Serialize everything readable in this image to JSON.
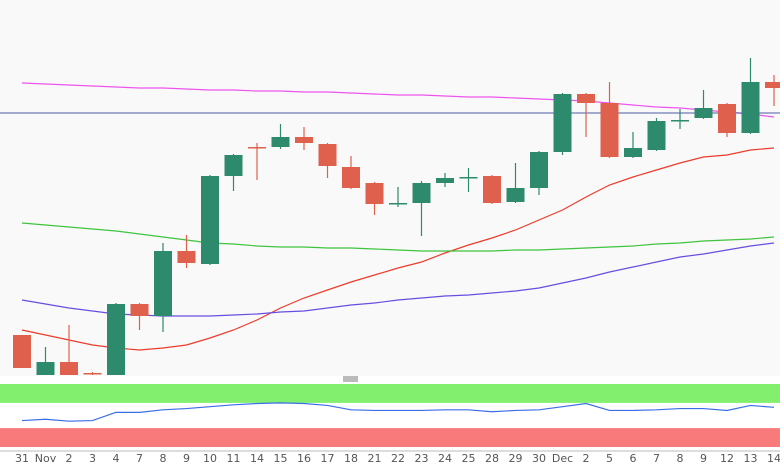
{
  "chart_data": {
    "type": "candlestick",
    "categories": [
      "31",
      "Nov",
      "2",
      "3",
      "4",
      "7",
      "8",
      "9",
      "10",
      "11",
      "14",
      "15",
      "16",
      "17",
      "18",
      "21",
      "22",
      "23",
      "24",
      "25",
      "28",
      "29",
      "30",
      "Dec",
      "2",
      "5",
      "6",
      "7",
      "8",
      "9",
      "12",
      "13",
      "14"
    ],
    "open": [
      40,
      0,
      13,
      2,
      0,
      71,
      59,
      124,
      111,
      199,
      228,
      228,
      238,
      231,
      208,
      192,
      171,
      172,
      192,
      197,
      199,
      173,
      187,
      223,
      281,
      272,
      218,
      225,
      254,
      257,
      271,
      242,
      293
    ],
    "high": [
      40,
      28,
      50,
      3,
      72,
      72,
      132,
      140,
      200,
      221,
      232,
      251,
      248,
      232,
      219,
      193,
      188,
      194,
      202,
      207,
      200,
      212,
      224,
      282,
      282,
      293,
      243,
      257,
      266,
      285,
      272,
      317,
      300
    ],
    "low": [
      7,
      0,
      0,
      0,
      0,
      45,
      43,
      107,
      110,
      184,
      195,
      226,
      225,
      197,
      186,
      160,
      168,
      139,
      188,
      183,
      171,
      172,
      180,
      220,
      238,
      217,
      217,
      224,
      246,
      256,
      238,
      241,
      269
    ],
    "close": [
      7,
      13,
      0,
      1,
      71,
      59,
      124,
      112,
      199,
      220,
      227,
      238,
      232,
      209,
      187,
      171,
      172,
      192,
      197,
      198,
      172,
      187,
      223,
      281,
      272,
      218,
      227,
      254,
      255,
      267,
      242,
      293,
      287
    ],
    "up_color": "#2d8a6c",
    "down_color": "#e0604e",
    "ylim": [
      0,
      375
    ],
    "hline": 262,
    "hline_color": "#4a5aa8",
    "series": [
      {
        "color": "#ee55ee",
        "values": [
          292,
          291,
          290,
          289,
          288,
          287,
          287,
          286,
          285,
          285,
          284,
          284,
          283,
          283,
          282,
          281,
          280,
          280,
          279,
          278,
          278,
          277,
          276,
          275,
          274,
          272,
          270,
          268,
          267,
          265,
          263,
          261,
          258
        ]
      },
      {
        "color": "#ee3b2b",
        "values": [
          45,
          40,
          35,
          30,
          27,
          25,
          27,
          30,
          37,
          45,
          55,
          67,
          77,
          85,
          93,
          100,
          107,
          113,
          122,
          130,
          137,
          145,
          155,
          165,
          178,
          190,
          198,
          205,
          212,
          218,
          220,
          225,
          227
        ]
      },
      {
        "color": "#3ec43e",
        "values": [
          152,
          150,
          148,
          146,
          144,
          141,
          138,
          135,
          132,
          131,
          129,
          128,
          128,
          127,
          127,
          126,
          125,
          124,
          124,
          124,
          124,
          125,
          125,
          126,
          127,
          128,
          129,
          131,
          132,
          134,
          135,
          136,
          138
        ]
      },
      {
        "color": "#6a4de0",
        "values": [
          75,
          71,
          67,
          64,
          61,
          60,
          59,
          59,
          59,
          60,
          61,
          63,
          64,
          67,
          70,
          72,
          75,
          77,
          79,
          80,
          82,
          84,
          87,
          92,
          97,
          103,
          108,
          113,
          118,
          121,
          125,
          129,
          132
        ]
      }
    ],
    "oscillator": {
      "ylim": [
        0,
        100
      ],
      "color": "#3a6ee8",
      "zones": [
        {
          "from": 70,
          "to": 100,
          "color": "#82f06e"
        },
        {
          "from": 0,
          "to": 30,
          "color": "#f87a7a"
        }
      ],
      "values": [
        42,
        44,
        41,
        42,
        55,
        55,
        59,
        61,
        64,
        67,
        69,
        70,
        69,
        66,
        59,
        58,
        58,
        58,
        59,
        59,
        56,
        58,
        59,
        64,
        69,
        58,
        58,
        59,
        61,
        61,
        58,
        66,
        63
      ]
    }
  }
}
